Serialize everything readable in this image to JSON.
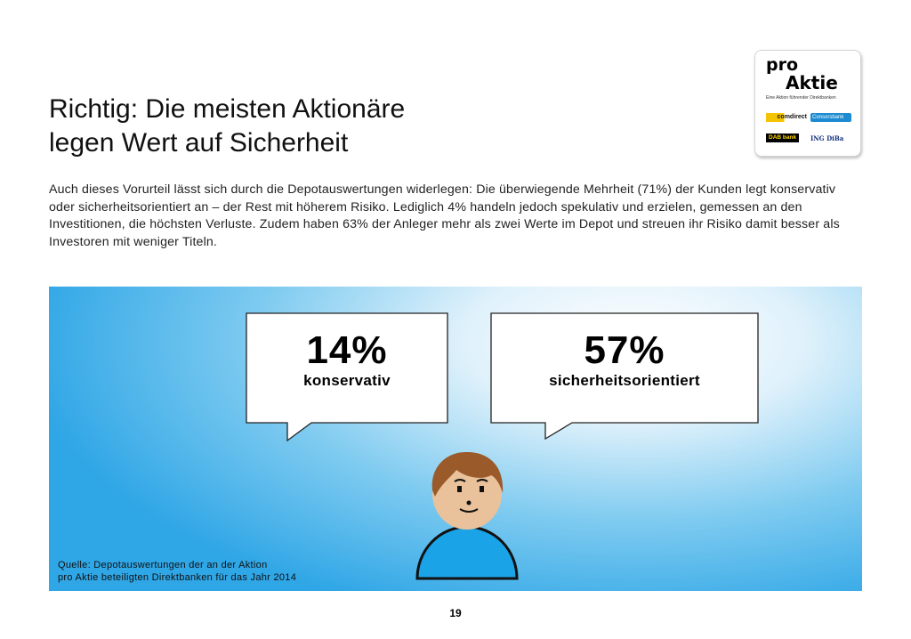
{
  "title": {
    "line1": "Richtig: Die meisten Aktionäre",
    "line2": "legen Wert auf Sicherheit"
  },
  "intro": "Auch dieses Vorurteil lässt sich durch die Depotauswertungen widerlegen: Die überwiegende Mehrheit (71%) der Kunden legt konservativ oder sicherheitsorientiert an – der Rest mit höherem Risiko. Lediglich 4% handeln jedoch spekulativ und erzielen, gemessen an den Investitionen, die höchsten Verluste. Zudem haben 63% der Anleger mehr als zwei Werte im Depot und streuen ihr Risiko damit besser als Investoren mit weniger Titeln.",
  "logo": {
    "line1": "pro",
    "line2": "Aktie",
    "tagline": "Eine Aktion führender Direktbanken",
    "partners": [
      "comdirect",
      "Consorsbank",
      "DAB bank",
      "ING DiBa"
    ]
  },
  "stats": [
    {
      "value": "14%",
      "label": "konservativ"
    },
    {
      "value": "57%",
      "label": "sicherheitsorientiert"
    }
  ],
  "source": {
    "line1": "Quelle: Depotauswertungen der an der Aktion",
    "line2": "pro Aktie beteiligten Direktbanken für das Jahr 2014"
  },
  "page_number": "19",
  "colors": {
    "panel_blue": "#2fa6e6",
    "person_shirt": "#1ba3e8",
    "person_hair": "#9a5a2a",
    "person_skin": "#e9c19a"
  }
}
